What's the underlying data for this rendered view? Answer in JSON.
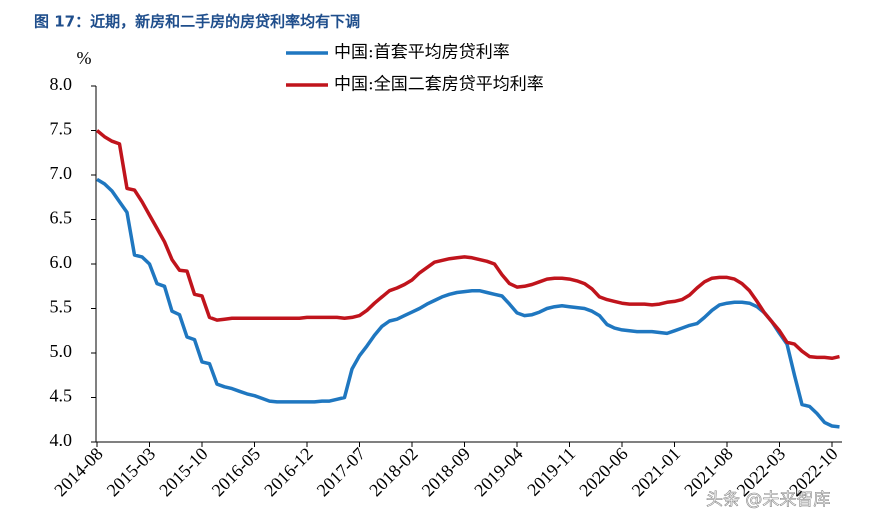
{
  "chart_data": {
    "type": "line",
    "title": "图 17：近期，新房和二手房的房贷利率均有下调",
    "y_label": "%",
    "watermark": "头条 @未来智库",
    "categories": [
      "2014-08",
      null,
      null,
      null,
      null,
      null,
      null,
      "2015-03",
      null,
      null,
      null,
      null,
      null,
      null,
      "2015-10",
      null,
      null,
      null,
      null,
      null,
      null,
      "2016-05",
      null,
      null,
      null,
      null,
      null,
      null,
      "2016-12",
      null,
      null,
      null,
      null,
      null,
      null,
      "2017-07",
      null,
      null,
      null,
      null,
      null,
      null,
      "2018-02",
      null,
      null,
      null,
      null,
      null,
      null,
      "2018-09",
      null,
      null,
      null,
      null,
      null,
      null,
      "2019-04",
      null,
      null,
      null,
      null,
      null,
      null,
      "2019-11",
      null,
      null,
      null,
      null,
      null,
      null,
      "2020-06",
      null,
      null,
      null,
      null,
      null,
      null,
      "2021-01",
      null,
      null,
      null,
      null,
      null,
      null,
      "2021-08",
      null,
      null,
      null,
      null,
      null,
      null,
      "2022-03",
      null,
      null,
      null,
      null,
      null,
      null,
      "2022-10",
      null
    ],
    "series": [
      {
        "name": "中国:首套平均房贷利率",
        "color": "#1f77c0",
        "values": [
          6.95,
          6.9,
          6.82,
          6.7,
          6.58,
          6.1,
          6.08,
          6.0,
          5.78,
          5.75,
          5.47,
          5.43,
          5.18,
          5.15,
          4.9,
          4.88,
          4.65,
          4.62,
          4.6,
          4.57,
          4.54,
          4.52,
          4.49,
          4.46,
          4.45,
          4.45,
          4.45,
          4.45,
          4.45,
          4.45,
          4.46,
          4.46,
          4.48,
          4.5,
          4.82,
          4.97,
          5.08,
          5.2,
          5.3,
          5.36,
          5.38,
          5.42,
          5.46,
          5.5,
          5.55,
          5.59,
          5.63,
          5.66,
          5.68,
          5.69,
          5.7,
          5.7,
          5.68,
          5.66,
          5.64,
          5.55,
          5.45,
          5.42,
          5.43,
          5.46,
          5.5,
          5.52,
          5.53,
          5.52,
          5.51,
          5.5,
          5.47,
          5.42,
          5.32,
          5.28,
          5.26,
          5.25,
          5.24,
          5.24,
          5.24,
          5.23,
          5.22,
          5.25,
          5.28,
          5.31,
          5.33,
          5.4,
          5.48,
          5.54,
          5.56,
          5.57,
          5.57,
          5.56,
          5.52,
          5.45,
          5.35,
          5.22,
          5.1,
          4.75,
          4.42,
          4.4,
          4.32,
          4.22,
          4.18,
          4.17
        ]
      },
      {
        "name": "中国:全国二套房贷平均利率",
        "color": "#c0141c",
        "values": [
          7.5,
          7.43,
          7.38,
          7.35,
          6.85,
          6.83,
          6.7,
          6.55,
          6.4,
          6.25,
          6.05,
          5.93,
          5.92,
          5.66,
          5.64,
          5.4,
          5.37,
          5.38,
          5.39,
          5.39,
          5.39,
          5.39,
          5.39,
          5.39,
          5.39,
          5.39,
          5.39,
          5.39,
          5.4,
          5.4,
          5.4,
          5.4,
          5.4,
          5.39,
          5.4,
          5.42,
          5.48,
          5.56,
          5.63,
          5.7,
          5.73,
          5.77,
          5.82,
          5.9,
          5.96,
          6.02,
          6.04,
          6.06,
          6.07,
          6.08,
          6.07,
          6.05,
          6.03,
          6.0,
          5.88,
          5.78,
          5.74,
          5.75,
          5.77,
          5.8,
          5.83,
          5.84,
          5.84,
          5.83,
          5.81,
          5.78,
          5.72,
          5.63,
          5.6,
          5.58,
          5.56,
          5.55,
          5.55,
          5.55,
          5.54,
          5.55,
          5.57,
          5.58,
          5.6,
          5.65,
          5.73,
          5.8,
          5.84,
          5.85,
          5.85,
          5.83,
          5.78,
          5.7,
          5.58,
          5.45,
          5.35,
          5.25,
          5.12,
          5.1,
          5.02,
          4.96,
          4.95,
          4.95,
          4.94,
          4.96
        ]
      }
    ],
    "ylim": [
      4.0,
      8.0
    ],
    "yticks": [
      {
        "value": 4.0,
        "label": "4.0"
      },
      {
        "value": 4.5,
        "label": "4.5"
      },
      {
        "value": 5.0,
        "label": "5.0"
      },
      {
        "value": 5.5,
        "label": "5.5"
      },
      {
        "value": 6.0,
        "label": "6.0"
      },
      {
        "value": 6.5,
        "label": "6.5"
      },
      {
        "value": 7.0,
        "label": "7.0"
      },
      {
        "value": 7.5,
        "label": "7.5"
      },
      {
        "value": 8.0,
        "label": "8.0"
      }
    ],
    "grid": false
  }
}
